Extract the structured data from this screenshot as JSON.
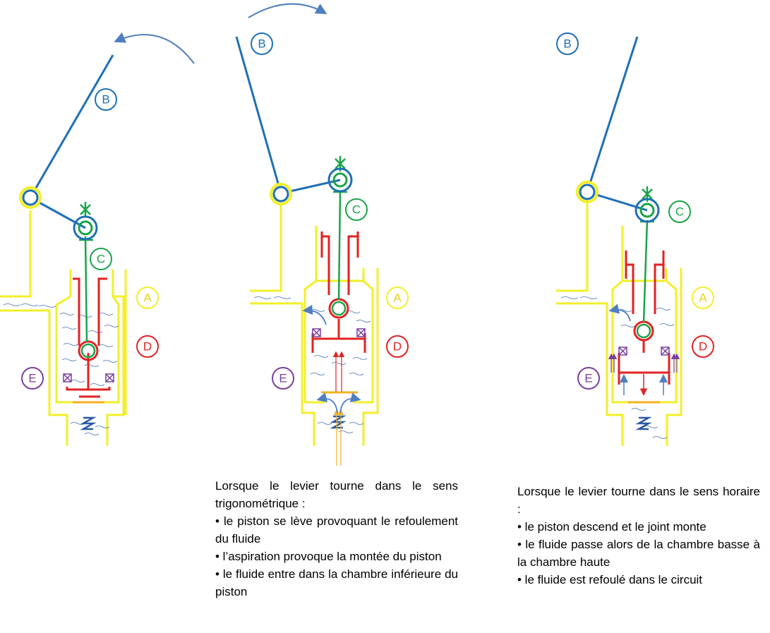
{
  "colors": {
    "lever": "#1f6fb5",
    "rod": "#1aa34a",
    "housing": "#f2ef2a",
    "piston": "#e32222",
    "valve": "#7a3fa0",
    "base": "#f4b023",
    "fluid": "#2a5aa8"
  },
  "labels": {
    "A": "A",
    "B": "B",
    "C": "C",
    "D": "D",
    "E": "E"
  },
  "panel_center": {
    "b_labels": [
      "B",
      "B"
    ],
    "c_label": "C",
    "a_label": "A",
    "d_label": "D",
    "e_label": "E",
    "description": {
      "intro": "Lorsque le levier tourne dans le sens trigonométrique :",
      "items": [
        "• le piston se lève provoquant le refoulement du fluide",
        "• l’aspiration provoque la montée du piston",
        "• le fluide entre dans la chambre inférieure du piston"
      ]
    }
  },
  "panel_right": {
    "description": {
      "intro": "Lorsque le levier tourne dans le sens horaire :",
      "items": [
        "• le piston descend et le joint monte",
        "• le fluide passe alors de la chambre basse à la chambre haute",
        "• le fluide est refoulé dans le circuit"
      ]
    }
  }
}
